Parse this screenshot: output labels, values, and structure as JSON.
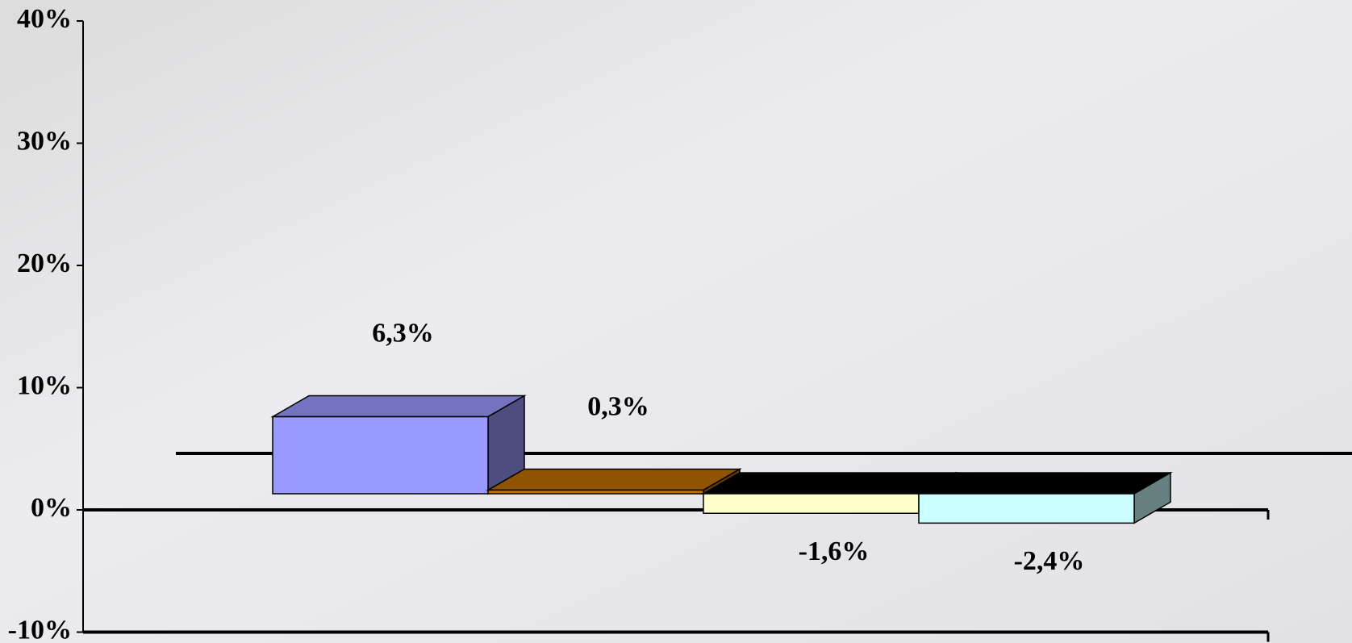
{
  "chart_data": {
    "type": "bar3d",
    "categories": [
      null,
      null,
      null,
      null
    ],
    "values": [
      6.3,
      0.3,
      -1.6,
      -2.4
    ],
    "value_labels": [
      "6,3%",
      "0,3%",
      "-1,6%",
      "-2,4%"
    ],
    "colors": [
      "#9999ff",
      "#c07000",
      "#ffffcc",
      "#ccffff"
    ],
    "ylim": [
      -10,
      40
    ],
    "yticks": [
      {
        "value": -10,
        "label": "-10%"
      },
      {
        "value": 0,
        "label": "0%"
      },
      {
        "value": 10,
        "label": "10%"
      },
      {
        "value": 20,
        "label": "20%"
      },
      {
        "value": 30,
        "label": "30%"
      },
      {
        "value": 40,
        "label": "40%"
      }
    ]
  }
}
